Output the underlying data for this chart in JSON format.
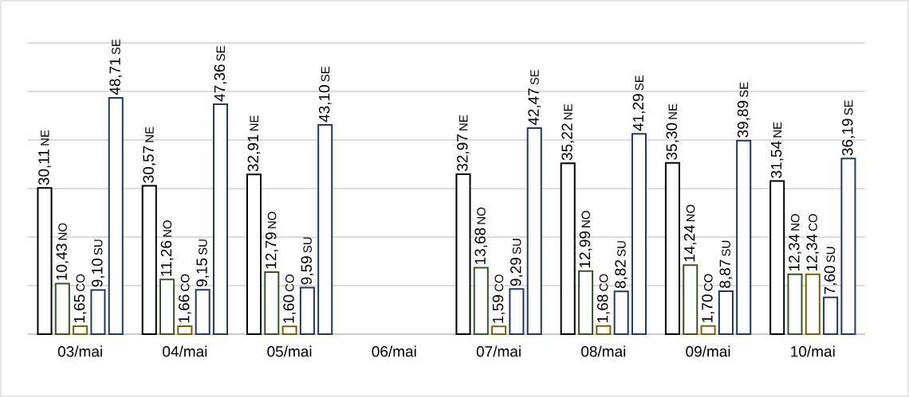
{
  "chart_data": {
    "type": "bar",
    "categories": [
      "03/mai",
      "04/mai",
      "05/mai",
      "06/mai",
      "07/mai",
      "08/mai",
      "09/mai",
      "10/mai"
    ],
    "series": [
      {
        "name": "NE",
        "color": "#000000",
        "values": [
          30.11,
          30.57,
          32.91,
          null,
          32.97,
          35.22,
          35.3,
          31.54
        ],
        "value_labels": [
          "30,11",
          "30,57",
          "32,91",
          null,
          "32,97",
          "35,22",
          "35,30",
          "31,54"
        ]
      },
      {
        "name": "NO",
        "color": "#375623",
        "values": [
          10.43,
          11.26,
          12.79,
          null,
          13.68,
          12.99,
          14.24,
          12.34
        ],
        "value_labels": [
          "10,43",
          "11,26",
          "12,79",
          null,
          "13,68",
          "12,99",
          "14,24",
          "12,34"
        ]
      },
      {
        "name": "CO",
        "color": "#7f6000",
        "values": [
          1.65,
          1.66,
          1.6,
          null,
          1.59,
          1.68,
          1.7,
          12.34
        ],
        "value_labels": [
          "1,65",
          "1,66",
          "1,60",
          null,
          "1,59",
          "1,68",
          "1,70",
          "12,34"
        ]
      },
      {
        "name": "SU",
        "color": "#1f3864",
        "values": [
          9.1,
          9.15,
          9.59,
          null,
          9.29,
          8.82,
          8.87,
          7.6
        ],
        "value_labels": [
          "9,10",
          "9,15",
          "9,59",
          null,
          "9,29",
          "8,82",
          "8,87",
          "7,60"
        ]
      },
      {
        "name": "SE",
        "color": "#203864",
        "values": [
          48.71,
          47.36,
          43.1,
          null,
          42.47,
          41.29,
          39.89,
          36.19
        ],
        "value_labels": [
          "48,71",
          "47,36",
          "43,10",
          null,
          "42,47",
          "41,29",
          "39,89",
          "36,19"
        ]
      }
    ],
    "ylim": [
      0,
      60
    ],
    "yticks": [
      {
        "value": 0,
        "label": null
      },
      {
        "value": 10,
        "label": null
      },
      {
        "value": 20,
        "label": null
      },
      {
        "value": 30,
        "label": null
      },
      {
        "value": 40,
        "label": null
      },
      {
        "value": 50,
        "label": null
      },
      {
        "value": 60,
        "label": null
      }
    ],
    "grid": "y",
    "tick_labels": "x"
  }
}
